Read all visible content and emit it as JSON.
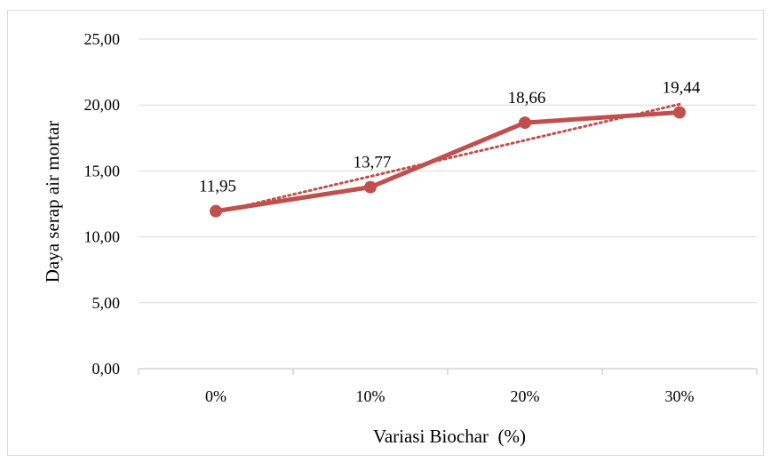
{
  "chart_data": {
    "type": "line",
    "categories": [
      "0%",
      "10%",
      "20%",
      "30%"
    ],
    "series": [
      {
        "values": [
          11.95,
          13.77,
          18.66,
          19.44
        ],
        "data_labels": [
          "11,95",
          "13,77",
          "18,66",
          "19,44"
        ],
        "color": "#c0504d",
        "markers": true
      }
    ],
    "trendline": {
      "kind": "linear",
      "style": "dotted",
      "color": "#c0504d"
    },
    "title": "",
    "xlabel": "Variasi Biochar  (%)",
    "ylabel": "Daya serap air mortar",
    "ylim": [
      0,
      25
    ],
    "ytick_values": [
      0,
      5,
      10,
      15,
      20,
      25
    ],
    "ytick_labels": [
      "0,00",
      "5,00",
      "10,00",
      "15,00",
      "20,00",
      "25,00"
    ],
    "grid": "horizontal"
  }
}
